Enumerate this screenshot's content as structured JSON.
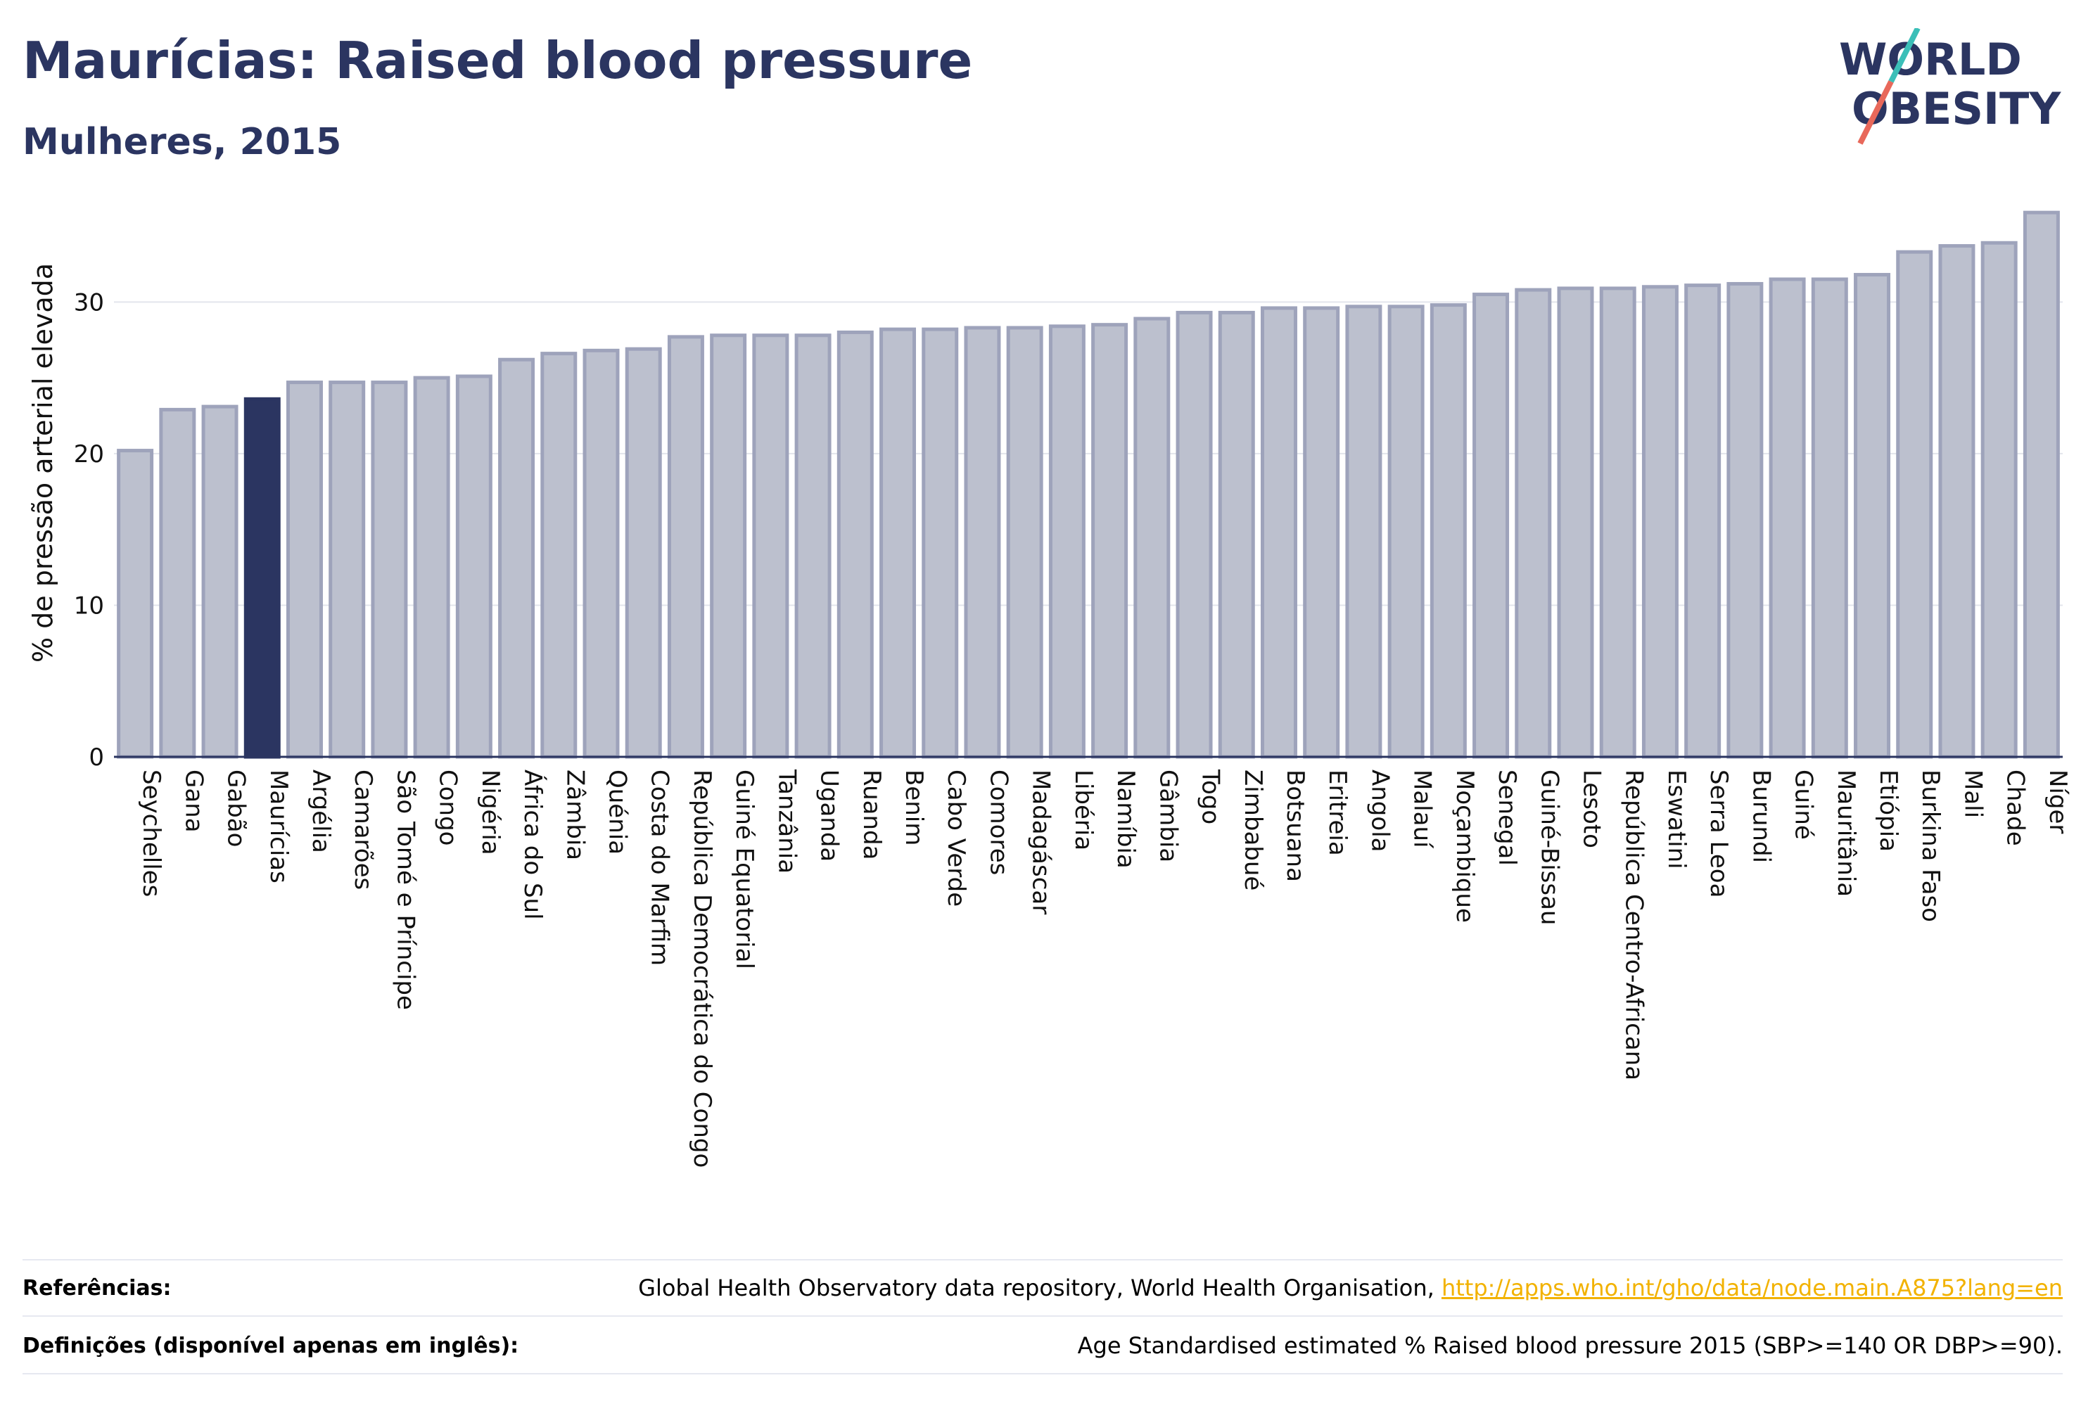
{
  "header": {
    "title": "Maurícias: Raised blood pressure",
    "subtitle": "Mulheres, 2015"
  },
  "logo": {
    "line1": "WORLD",
    "line2": "OBESITY"
  },
  "colors": {
    "highlight": "#2b3561",
    "bar_fill": "#bcc0ce",
    "bar_stroke": "#9ea3bb",
    "link": "#f2b200",
    "logo_teal": "#3bbfb8",
    "logo_red": "#e8685a"
  },
  "chart_data": {
    "type": "bar",
    "ylabel": "% de pressão arterial elevada",
    "ylim": [
      0,
      36
    ],
    "yticks": [
      0,
      10,
      20,
      30
    ],
    "grid": true,
    "highlight": "Maurícias",
    "categories": [
      "Seychelles",
      "Gana",
      "Gabão",
      "Maurícias",
      "Argélia",
      "Camarões",
      "São Tomé e Príncipe",
      "Congo",
      "Nigéria",
      "África do Sul",
      "Zâmbia",
      "Quénia",
      "Costa do Marfim",
      "República Democrática do Congo",
      "Guiné Equatorial",
      "Tanzânia",
      "Uganda",
      "Ruanda",
      "Benim",
      "Cabo Verde",
      "Comores",
      "Madagáscar",
      "Libéria",
      "Namíbia",
      "Gâmbia",
      "Togo",
      "Zimbabué",
      "Botsuana",
      "Eritreia",
      "Angola",
      "Malauí",
      "Moçambique",
      "Senegal",
      "Guiné-Bissau",
      "Lesoto",
      "República Centro-Africana",
      "Eswatini",
      "Serra Leoa",
      "Burundi",
      "Guiné",
      "Mauritânia",
      "Etiópia",
      "Burkina Faso",
      "Mali",
      "Chade",
      "Níger"
    ],
    "values": [
      20.2,
      22.9,
      23.1,
      23.6,
      24.7,
      24.7,
      24.7,
      25.0,
      25.1,
      26.2,
      26.6,
      26.8,
      26.9,
      27.7,
      27.8,
      27.8,
      27.8,
      28.0,
      28.2,
      28.2,
      28.3,
      28.3,
      28.4,
      28.5,
      28.9,
      29.3,
      29.3,
      29.6,
      29.6,
      29.7,
      29.7,
      29.8,
      30.5,
      30.8,
      30.9,
      30.9,
      31.0,
      31.1,
      31.2,
      31.5,
      31.5,
      31.8,
      33.3,
      33.7,
      33.9,
      35.9
    ]
  },
  "footer": {
    "references_label": "Referências:",
    "references_text": "Global Health Observatory data repository, World Health Organisation,",
    "references_link": "http://apps.who.int/gho/data/node.main.A875?lang=en",
    "definitions_label": "Definições (disponível apenas em inglês):",
    "definitions_text": "Age Standardised estimated % Raised blood pressure 2015 (SBP>=140 OR DBP>=90)."
  }
}
